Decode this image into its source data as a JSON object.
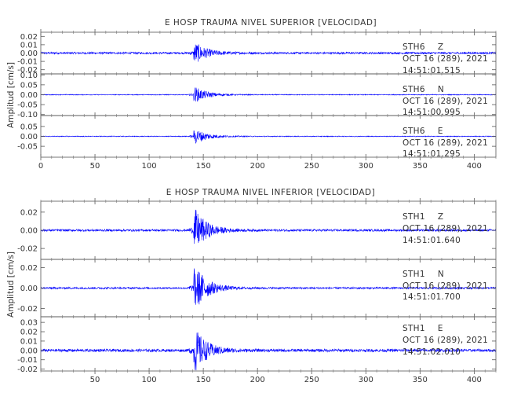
{
  "chart_data": [
    {
      "type": "line",
      "title": "E HOSP TRAUMA NIVEL SUPERIOR [VELOCIDAD]",
      "ylabel": "Amplitud [cm/s]",
      "xlim": [
        0,
        420
      ],
      "x_ticks": [
        0,
        50,
        100,
        150,
        200,
        250,
        300,
        350,
        400
      ],
      "x_tick_labels": [
        "0",
        "50",
        "100",
        "150",
        "200",
        "250",
        "300",
        "350",
        "400"
      ],
      "line_color": "#0000ff",
      "onset_x": 141,
      "traces": [
        {
          "station": "STH6",
          "component": "Z",
          "date": "OCT 16 (289), 2021",
          "time": "14:51:01.515",
          "ylim": [
            -0.025,
            0.025
          ],
          "y_ticks": [
            0.02,
            0.01,
            0.0,
            -0.01,
            -0.02
          ],
          "y_tick_labels": [
            "0.02",
            "0.01",
            "0.00",
            "-0.01",
            "-0.02"
          ],
          "peak": 0.014,
          "noise": 0.0012
        },
        {
          "station": "STH6",
          "component": "N",
          "date": "OCT 16 (289), 2021",
          "time": "14:51:00.995",
          "ylim": [
            -0.105,
            0.105
          ],
          "y_ticks": [
            0.1,
            0.05,
            0.0,
            -0.05,
            -0.1
          ],
          "y_tick_labels": [
            "0.10",
            "0.05",
            "0.00",
            "-0.05",
            "-0.10"
          ],
          "peak": 0.045,
          "noise": 0.002
        },
        {
          "station": "STH6",
          "component": "E",
          "date": "OCT 16 (289), 2021",
          "time": "14:51:01.295",
          "ylim": [
            -0.105,
            0.105
          ],
          "y_ticks": [
            0.05,
            0.0,
            -0.05
          ],
          "y_tick_labels": [
            "0.05",
            "0.00",
            "-0.05"
          ],
          "peak": 0.045,
          "noise": 0.002
        }
      ]
    },
    {
      "type": "line",
      "title": "E HOSP TRAUMA NIVEL INFERIOR [VELOCIDAD]",
      "ylabel": "Amplitud [cm/s]",
      "xlim": [
        0,
        420
      ],
      "x_ticks": [
        50,
        100,
        150,
        200,
        250,
        300,
        350,
        400
      ],
      "x_tick_labels": [
        "50",
        "100",
        "150",
        "200",
        "250",
        "300",
        "350",
        "400"
      ],
      "line_color": "#0000ff",
      "onset_x": 141,
      "traces": [
        {
          "station": "STH1",
          "component": "Z",
          "date": "OCT 16 (289), 2021",
          "time": "14:51:01.640",
          "ylim": [
            -0.032,
            0.032
          ],
          "y_ticks": [
            0.02,
            0.0,
            -0.02
          ],
          "y_tick_labels": [
            "0.02",
            "0.00",
            "-0.02"
          ],
          "peak": 0.026,
          "noise": 0.0012
        },
        {
          "station": "STH1",
          "component": "N",
          "date": "OCT 16 (289), 2021",
          "time": "14:51:01.700",
          "ylim": [
            -0.028,
            0.028
          ],
          "y_ticks": [
            0.02,
            0.0,
            -0.02
          ],
          "y_tick_labels": [
            "0.02",
            "0.00",
            "-0.02"
          ],
          "peak": 0.026,
          "noise": 0.0009
        },
        {
          "station": "STH1",
          "component": "E",
          "date": "OCT 16 (289), 2021",
          "time": "14:51:02.010",
          "ylim": [
            -0.022,
            0.036
          ],
          "y_ticks": [
            0.03,
            0.02,
            0.01,
            0.0,
            -0.01,
            -0.02
          ],
          "y_tick_labels": [
            "0.03",
            "0.02",
            "0.01",
            "0.00",
            "-0.01",
            "-0.02"
          ],
          "peak": 0.026,
          "noise": 0.0015
        }
      ]
    }
  ]
}
